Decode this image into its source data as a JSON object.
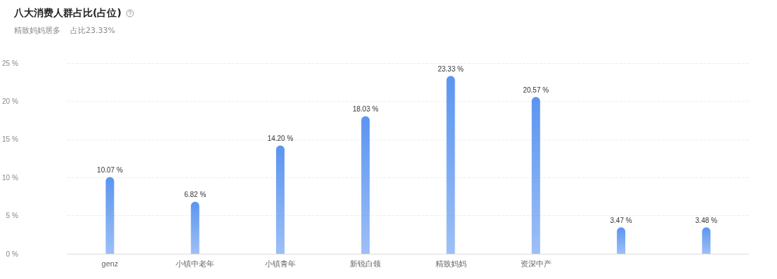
{
  "chart_data": {
    "type": "bar",
    "title": "八大消费人群占比(占位)",
    "subtitle": "精致妈妈居多    占比23.33%",
    "categories": [
      "genz",
      "小镇中老年",
      "小镇青年",
      "新锐白领",
      "精致妈妈",
      "资深中产",
      null,
      null
    ],
    "values": [
      10.07,
      6.82,
      14.2,
      18.03,
      23.33,
      20.57,
      3.47,
      3.48
    ],
    "value_labels": [
      "10.07 %",
      "6.82 %",
      "14.20 %",
      "18.03 %",
      "23.33 %",
      "20.57 %",
      "3.47 %",
      "3.48 %"
    ],
    "color": "#5b95f0",
    "ylim": [
      0,
      25
    ],
    "yticks": [
      {
        "value": 0,
        "label": "0 %"
      },
      {
        "value": 5,
        "label": "5 %"
      },
      {
        "value": 10,
        "label": "10 %"
      },
      {
        "value": 15,
        "label": "15 %"
      },
      {
        "value": 20,
        "label": "20 %"
      },
      {
        "value": 25,
        "label": "25 %"
      }
    ],
    "grid": "y"
  }
}
